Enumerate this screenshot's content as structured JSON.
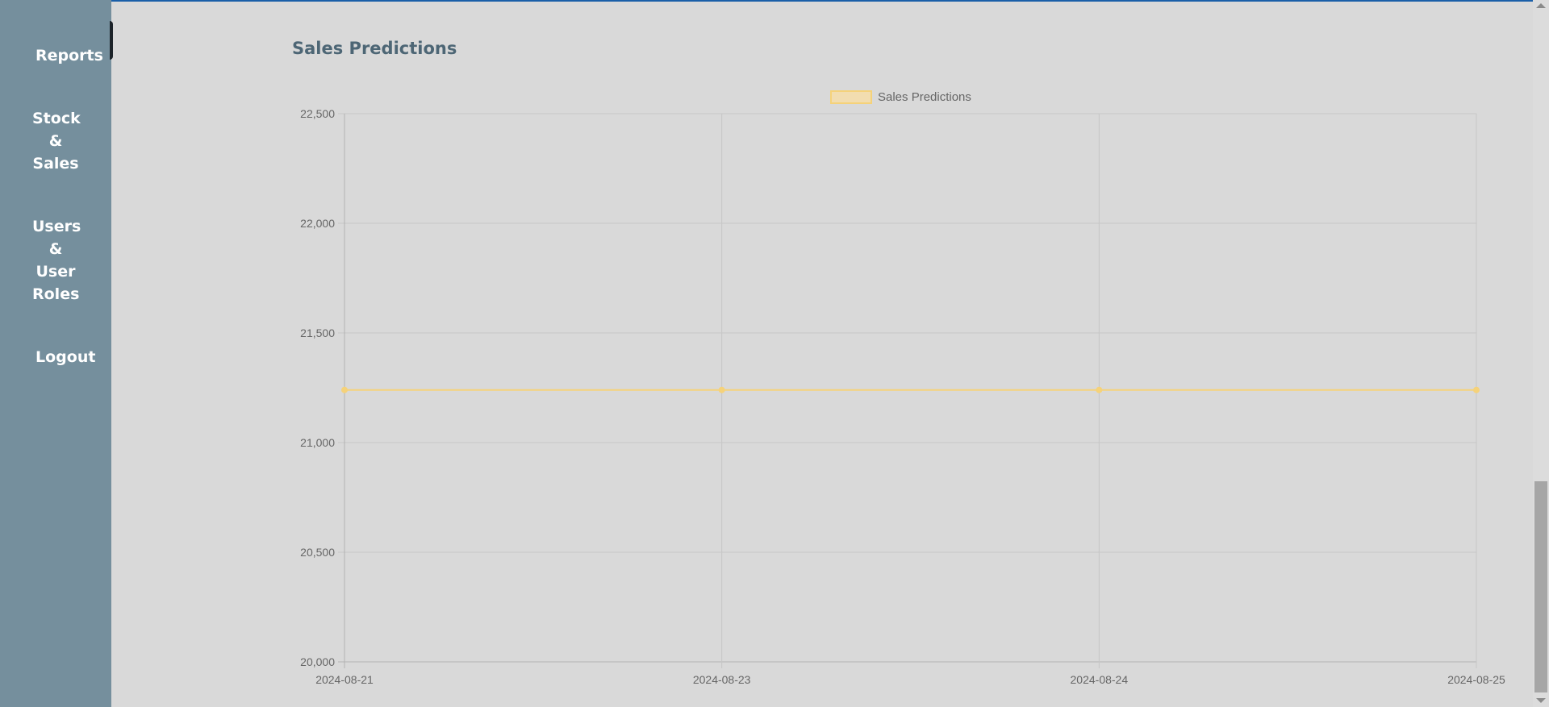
{
  "sidebar": {
    "items": [
      {
        "label": "Reports"
      },
      {
        "label_lines": [
          "Stock",
          "&",
          "Sales"
        ]
      },
      {
        "label_lines": [
          "Users",
          "&",
          "User",
          "Roles"
        ]
      },
      {
        "label": "Logout"
      }
    ]
  },
  "main": {
    "section_title": "Sales Predictions"
  },
  "colors": {
    "sidebar_bg": "#758f9d",
    "line_color": "#f5d27a",
    "title_color": "#4d6675"
  },
  "chart_data": {
    "type": "line",
    "title": "",
    "xlabel": "",
    "ylabel": "",
    "categories": [
      "2024-08-21",
      "2024-08-23",
      "2024-08-24",
      "2024-08-25"
    ],
    "series": [
      {
        "name": "Sales Predictions",
        "values": [
          21240,
          21240,
          21240,
          21240
        ]
      }
    ],
    "ylim": [
      20000,
      22500
    ],
    "yticks": [
      20000,
      20500,
      21000,
      21500,
      22000,
      22500
    ],
    "ytick_labels": [
      "20,000",
      "20,500",
      "21,000",
      "21,500",
      "22,000",
      "22,500"
    ],
    "legend_position": "top-center",
    "grid": true
  }
}
